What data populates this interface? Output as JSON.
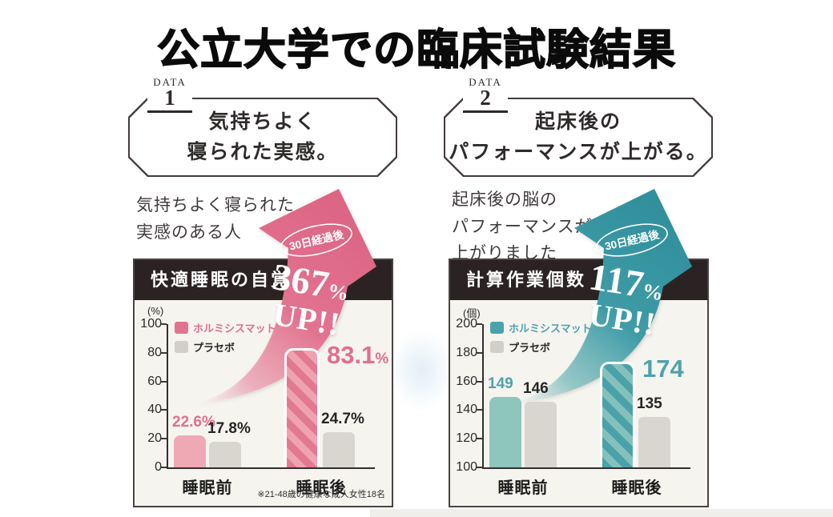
{
  "page": {
    "title": "公立大学での臨床試験結果"
  },
  "panels": [
    {
      "data_label": "DATA",
      "data_number": "1",
      "headline": {
        "line1": "気持ちよく",
        "line2": "寝られた実感。"
      },
      "description": [
        "気持ちよく寝られた",
        "実感のある人",
        ""
      ],
      "accent": "#e2738e"
    },
    {
      "data_label": "DATA",
      "data_number": "2",
      "headline": {
        "line1": "起床後の",
        "line2": "パフォーマンスが上がる。"
      },
      "description": [
        "起床後の脳の",
        "パフォーマンスが",
        "上がりました"
      ],
      "accent": "#3f9ca7"
    }
  ],
  "chart_data": [
    {
      "type": "bar",
      "title": "快適睡眠の自覚",
      "unit_label": "(%)",
      "categories": [
        "睡眠前",
        "睡眠後"
      ],
      "series": [
        {
          "name": "ホルミシスマット",
          "values": [
            22.6,
            83.1
          ],
          "labels": [
            "22.6%",
            "83.1%"
          ],
          "color": "#efa9b5",
          "legend_color": "#e2738e",
          "label_color": "#e0708c"
        },
        {
          "name": "プラセボ",
          "values": [
            17.8,
            24.7
          ],
          "labels": [
            "17.8%",
            "24.7%"
          ],
          "color": "#d9d6d0",
          "legend_color": "#d2cfc9",
          "label_color": "#262626"
        }
      ],
      "ylim": [
        0,
        100
      ],
      "yticks": [
        100,
        80,
        60,
        40,
        20,
        0
      ],
      "grid": false,
      "legend_position": "top-left",
      "highlight": {
        "category_index": 1,
        "series_index": 0,
        "style": "diagonal-stripes",
        "stripe_colors": [
          "#e27990",
          "#efa3b1"
        ],
        "big_label": {
          "value": "83.1",
          "unit": "%"
        }
      },
      "footnote": "※21-48歳の健康な成人女性18名",
      "annotation": {
        "badge": "30日経過後",
        "value": "367",
        "value_unit": "%",
        "line2": "UP!!"
      },
      "arrow_colors": {
        "light": "#fbe9ee",
        "mid": "#efa8b7",
        "main": "#e2738e",
        "dark": "#dc6684"
      }
    },
    {
      "type": "bar",
      "title": "計算作業個数",
      "unit_label": "(個)",
      "categories": [
        "睡眠前",
        "睡眠後"
      ],
      "series": [
        {
          "name": "ホルミシスマット",
          "values": [
            149,
            174
          ],
          "labels": [
            "149",
            "174"
          ],
          "color": "#8ec5bc",
          "legend_color": "#4aa2ab",
          "label_color": "#4da3ad"
        },
        {
          "name": "プラセボ",
          "values": [
            146,
            135
          ],
          "labels": [
            "146",
            "135"
          ],
          "color": "#d9d6d0",
          "legend_color": "#d2cfc9",
          "label_color": "#262626"
        }
      ],
      "ylim": [
        100,
        200
      ],
      "yticks": [
        200,
        180,
        160,
        140,
        120,
        100
      ],
      "grid": false,
      "legend_position": "top-left",
      "highlight": {
        "category_index": 1,
        "series_index": 0,
        "style": "diagonal-stripes",
        "stripe_colors": [
          "#4aa2a8",
          "#84c1bd"
        ],
        "big_label": {
          "value": "174",
          "unit": ""
        }
      },
      "footnote": "",
      "annotation": {
        "badge": "30日経過後",
        "value": "117",
        "value_unit": "%",
        "line2": "UP!!"
      },
      "arrow_colors": {
        "light": "#e9f5f4",
        "mid": "#8cc6c6",
        "main": "#3f9ca7",
        "dark": "#31909c"
      }
    }
  ]
}
